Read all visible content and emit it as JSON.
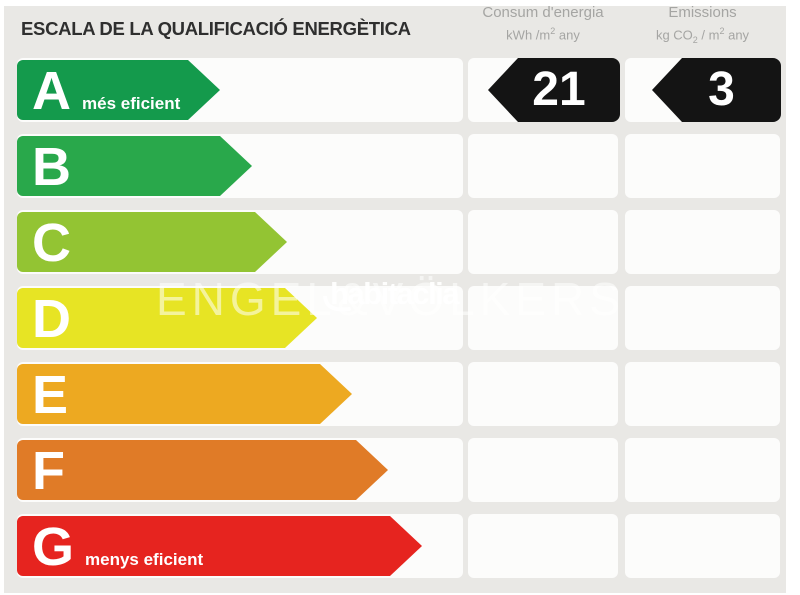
{
  "title": "ESCALA DE LA QUALIFICACIÓ ENERGÈTICA",
  "columns": {
    "consumption": {
      "title": "Consum d'energia",
      "unit_a": "kWh /m",
      "unit_sup": "2",
      "unit_b": " any"
    },
    "emissions": {
      "title": "Emissions",
      "unit_a": "kg CO",
      "unit_sub": "2",
      "unit_b": " / m",
      "unit_sup": "2",
      "unit_c": " any"
    }
  },
  "scale": {
    "ratings": [
      {
        "letter": "A",
        "label": "més eficient",
        "color": "#149a4c",
        "arrow_width": 203
      },
      {
        "letter": "B",
        "label": "",
        "color": "#29a84b",
        "arrow_width": 235
      },
      {
        "letter": "C",
        "label": "",
        "color": "#93c433",
        "arrow_width": 270
      },
      {
        "letter": "D",
        "label": "",
        "color": "#e7e424",
        "arrow_width": 300
      },
      {
        "letter": "E",
        "label": "",
        "color": "#eda921",
        "arrow_width": 335
      },
      {
        "letter": "F",
        "label": "",
        "color": "#e07b27",
        "arrow_width": 371
      },
      {
        "letter": "G",
        "label": "menys eficient",
        "color": "#e6241f",
        "arrow_width": 405
      }
    ]
  },
  "values": {
    "rating": "A",
    "consumption": "21",
    "emissions": "3",
    "arrow_color": "#141414"
  },
  "watermark": {
    "brand": "ENGEL&VÖLKERS",
    "portal": "habitaclia"
  }
}
